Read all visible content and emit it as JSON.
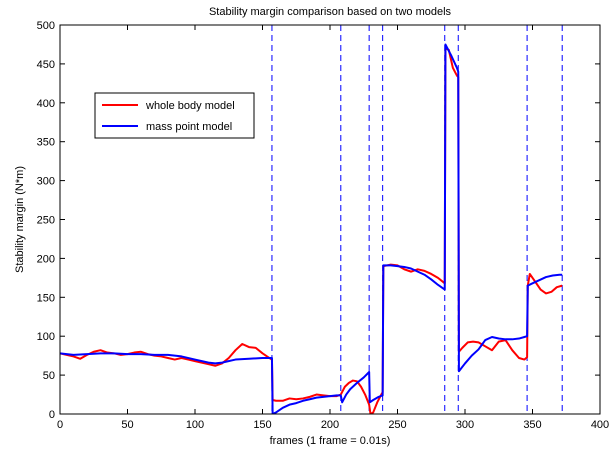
{
  "chart_data": {
    "type": "line",
    "title": "Stability margin comparison based on two models",
    "xlabel": "frames (1 frame = 0.01s)",
    "ylabel": "Stability margin (N*m)",
    "xlim": [
      0,
      400
    ],
    "ylim": [
      0,
      500
    ],
    "xticks": [
      0,
      50,
      100,
      150,
      200,
      250,
      300,
      350,
      400
    ],
    "yticks": [
      0,
      50,
      100,
      150,
      200,
      250,
      300,
      350,
      400,
      450,
      500
    ],
    "grid": false,
    "legend_position": "upper-left",
    "vertical_dashed_lines": [
      0,
      157,
      208,
      229,
      239,
      285,
      295,
      346,
      372
    ],
    "series": [
      {
        "name": "whole body model",
        "color": "#ff0000",
        "points": [
          [
            0,
            78
          ],
          [
            5,
            76
          ],
          [
            10,
            74
          ],
          [
            15,
            71
          ],
          [
            20,
            76
          ],
          [
            25,
            80
          ],
          [
            30,
            82
          ],
          [
            35,
            79
          ],
          [
            40,
            78
          ],
          [
            45,
            76
          ],
          [
            50,
            77
          ],
          [
            55,
            79
          ],
          [
            60,
            80
          ],
          [
            65,
            77
          ],
          [
            70,
            75
          ],
          [
            75,
            74
          ],
          [
            80,
            72
          ],
          [
            85,
            70
          ],
          [
            90,
            72
          ],
          [
            95,
            70
          ],
          [
            100,
            68
          ],
          [
            105,
            66
          ],
          [
            110,
            64
          ],
          [
            115,
            62
          ],
          [
            120,
            65
          ],
          [
            125,
            72
          ],
          [
            130,
            82
          ],
          [
            135,
            90
          ],
          [
            140,
            86
          ],
          [
            145,
            85
          ],
          [
            150,
            78
          ],
          [
            155,
            72
          ],
          [
            157,
            70
          ],
          [
            157.5,
            18
          ],
          [
            160,
            17
          ],
          [
            165,
            17
          ],
          [
            170,
            20
          ],
          [
            175,
            19
          ],
          [
            180,
            20
          ],
          [
            185,
            22
          ],
          [
            190,
            25
          ],
          [
            195,
            24
          ],
          [
            200,
            23
          ],
          [
            205,
            23
          ],
          [
            208,
            25
          ],
          [
            211,
            35
          ],
          [
            214,
            40
          ],
          [
            217,
            43
          ],
          [
            220,
            42
          ],
          [
            223,
            35
          ],
          [
            226,
            25
          ],
          [
            229,
            12
          ],
          [
            230,
            0
          ],
          [
            232,
            2
          ],
          [
            235,
            15
          ],
          [
            238,
            25
          ],
          [
            239,
            28
          ],
          [
            239.5,
            190
          ],
          [
            245,
            192
          ],
          [
            250,
            191
          ],
          [
            255,
            186
          ],
          [
            260,
            183
          ],
          [
            265,
            186
          ],
          [
            270,
            184
          ],
          [
            275,
            180
          ],
          [
            280,
            175
          ],
          [
            285,
            168
          ],
          [
            285.5,
            470
          ],
          [
            288,
            468
          ],
          [
            291,
            445
          ],
          [
            294,
            435
          ],
          [
            295,
            433
          ],
          [
            295.5,
            80
          ],
          [
            298,
            85
          ],
          [
            302,
            92
          ],
          [
            306,
            93
          ],
          [
            310,
            92
          ],
          [
            315,
            87
          ],
          [
            320,
            82
          ],
          [
            325,
            93
          ],
          [
            330,
            95
          ],
          [
            335,
            82
          ],
          [
            340,
            72
          ],
          [
            344,
            70
          ],
          [
            346,
            73
          ],
          [
            346.5,
            165
          ],
          [
            348,
            180
          ],
          [
            352,
            170
          ],
          [
            356,
            160
          ],
          [
            360,
            155
          ],
          [
            364,
            157
          ],
          [
            368,
            163
          ],
          [
            372,
            165
          ]
        ]
      },
      {
        "name": "mass point model",
        "color": "#0000ff",
        "points": [
          [
            0,
            78
          ],
          [
            10,
            76
          ],
          [
            20,
            77
          ],
          [
            30,
            78
          ],
          [
            40,
            78
          ],
          [
            50,
            77
          ],
          [
            60,
            77
          ],
          [
            70,
            76
          ],
          [
            80,
            76
          ],
          [
            90,
            74
          ],
          [
            100,
            70
          ],
          [
            110,
            66
          ],
          [
            115,
            65
          ],
          [
            120,
            66
          ],
          [
            130,
            70
          ],
          [
            140,
            71
          ],
          [
            150,
            72
          ],
          [
            157,
            72
          ],
          [
            157.5,
            0
          ],
          [
            160,
            2
          ],
          [
            165,
            8
          ],
          [
            170,
            12
          ],
          [
            175,
            14
          ],
          [
            180,
            17
          ],
          [
            185,
            19
          ],
          [
            190,
            21
          ],
          [
            195,
            22
          ],
          [
            200,
            23
          ],
          [
            205,
            24
          ],
          [
            208,
            24
          ],
          [
            209,
            15
          ],
          [
            212,
            25
          ],
          [
            215,
            32
          ],
          [
            220,
            40
          ],
          [
            225,
            47
          ],
          [
            229,
            54
          ],
          [
            229.5,
            15
          ],
          [
            232,
            18
          ],
          [
            236,
            22
          ],
          [
            239,
            24
          ],
          [
            239.5,
            191
          ],
          [
            245,
            191
          ],
          [
            250,
            190
          ],
          [
            255,
            189
          ],
          [
            260,
            187
          ],
          [
            265,
            183
          ],
          [
            270,
            179
          ],
          [
            275,
            173
          ],
          [
            280,
            166
          ],
          [
            285,
            160
          ],
          [
            285.5,
            475
          ],
          [
            290,
            460
          ],
          [
            294,
            445
          ],
          [
            295,
            440
          ],
          [
            295.5,
            55
          ],
          [
            300,
            65
          ],
          [
            305,
            75
          ],
          [
            310,
            83
          ],
          [
            315,
            95
          ],
          [
            320,
            99
          ],
          [
            325,
            97
          ],
          [
            330,
            96
          ],
          [
            335,
            96
          ],
          [
            340,
            97
          ],
          [
            344,
            99
          ],
          [
            346,
            100
          ],
          [
            346.5,
            165
          ],
          [
            350,
            168
          ],
          [
            355,
            172
          ],
          [
            360,
            176
          ],
          [
            365,
            178
          ],
          [
            370,
            179
          ],
          [
            372,
            179
          ]
        ]
      }
    ]
  }
}
